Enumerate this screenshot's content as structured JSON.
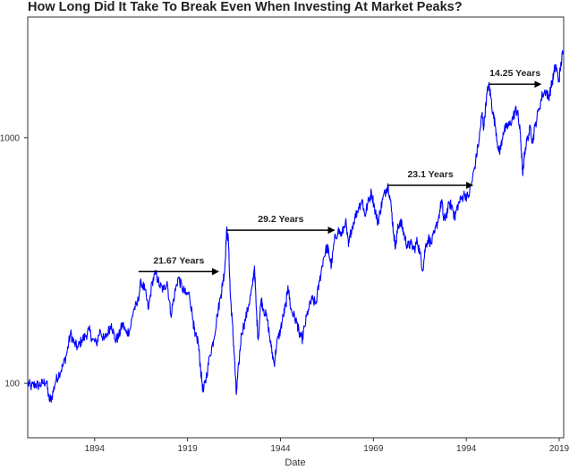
{
  "chart_data": {
    "type": "line",
    "title": "How Long Did It Take To Break Even When Investing At Market Peaks?",
    "xlabel": "Date",
    "ylabel": "",
    "x_scale": "time",
    "y_scale": "log",
    "xlim": [
      1876.0,
      2020.2
    ],
    "ylim": [
      60,
      3100
    ],
    "grid": false,
    "x_ticks": [
      {
        "value": 1894,
        "label": "1894"
      },
      {
        "value": 1919,
        "label": "1919"
      },
      {
        "value": 1944,
        "label": "1944"
      },
      {
        "value": 1969,
        "label": "1969"
      },
      {
        "value": 1994,
        "label": "1994"
      },
      {
        "value": 2019,
        "label": "2019"
      }
    ],
    "y_ticks": [
      {
        "value": 100,
        "label": "100"
      },
      {
        "value": 1000,
        "label": "1000"
      }
    ],
    "series": [
      {
        "color": "#0000ff",
        "points": [
          [
            1876.0,
            100
          ],
          [
            1877.0,
            97
          ],
          [
            1878.0,
            99
          ],
          [
            1879.0,
            98
          ],
          [
            1880.0,
            100
          ],
          [
            1881.0,
            102
          ],
          [
            1881.8,
            85
          ],
          [
            1882.5,
            88
          ],
          [
            1883.5,
            102
          ],
          [
            1884.5,
            110
          ],
          [
            1885.5,
            118
          ],
          [
            1886.5,
            132
          ],
          [
            1887.5,
            160
          ],
          [
            1888.5,
            145
          ],
          [
            1889.5,
            140
          ],
          [
            1890.5,
            150
          ],
          [
            1891.5,
            155
          ],
          [
            1892.5,
            165
          ],
          [
            1893.5,
            150
          ],
          [
            1894.5,
            145
          ],
          [
            1895.5,
            165
          ],
          [
            1896.5,
            150
          ],
          [
            1897.5,
            160
          ],
          [
            1898.5,
            175
          ],
          [
            1899.5,
            150
          ],
          [
            1900.5,
            155
          ],
          [
            1901.5,
            175
          ],
          [
            1902.5,
            160
          ],
          [
            1903.5,
            165
          ],
          [
            1904.5,
            200
          ],
          [
            1905.5,
            210
          ],
          [
            1906.5,
            260
          ],
          [
            1907.5,
            240
          ],
          [
            1908.5,
            200
          ],
          [
            1909.5,
            260
          ],
          [
            1910.5,
            280
          ],
          [
            1911.5,
            250
          ],
          [
            1912.5,
            240
          ],
          [
            1913.5,
            260
          ],
          [
            1914.5,
            190
          ],
          [
            1915.5,
            230
          ],
          [
            1916.5,
            270
          ],
          [
            1917.5,
            245
          ],
          [
            1918.5,
            230
          ],
          [
            1919.5,
            230
          ],
          [
            1920.5,
            180
          ],
          [
            1921.0,
            155
          ],
          [
            1921.8,
            150
          ],
          [
            1922.5,
            115
          ],
          [
            1923.2,
            92
          ],
          [
            1924.0,
            105
          ],
          [
            1925.0,
            130
          ],
          [
            1926.0,
            150
          ],
          [
            1927.0,
            190
          ],
          [
            1928.0,
            230
          ],
          [
            1928.5,
            260
          ],
          [
            1929.0,
            290
          ],
          [
            1929.5,
            420
          ],
          [
            1930.0,
            380
          ],
          [
            1930.5,
            230
          ],
          [
            1931.0,
            180
          ],
          [
            1931.6,
            130
          ],
          [
            1932.1,
            90
          ],
          [
            1932.8,
            120
          ],
          [
            1933.5,
            160
          ],
          [
            1934.5,
            180
          ],
          [
            1935.5,
            210
          ],
          [
            1936.5,
            250
          ],
          [
            1937.0,
            300
          ],
          [
            1937.5,
            200
          ],
          [
            1938.0,
            150
          ],
          [
            1938.8,
            220
          ],
          [
            1939.5,
            200
          ],
          [
            1940.5,
            180
          ],
          [
            1941.5,
            140
          ],
          [
            1942.3,
            120
          ],
          [
            1943.0,
            145
          ],
          [
            1944.0,
            165
          ],
          [
            1944.8,
            190
          ],
          [
            1945.5,
            210
          ],
          [
            1946.0,
            250
          ],
          [
            1946.8,
            200
          ],
          [
            1947.5,
            190
          ],
          [
            1948.5,
            175
          ],
          [
            1949.0,
            160
          ],
          [
            1949.8,
            150
          ],
          [
            1950.5,
            170
          ],
          [
            1951.5,
            200
          ],
          [
            1952.5,
            220
          ],
          [
            1953.5,
            210
          ],
          [
            1954.5,
            260
          ],
          [
            1955.5,
            320
          ],
          [
            1956.5,
            360
          ],
          [
            1957.0,
            340
          ],
          [
            1957.7,
            300
          ],
          [
            1958.5,
            380
          ],
          [
            1959.5,
            420
          ],
          [
            1960.5,
            400
          ],
          [
            1961.5,
            460
          ],
          [
            1962.3,
            360
          ],
          [
            1963.0,
            420
          ],
          [
            1964.0,
            470
          ],
          [
            1965.0,
            520
          ],
          [
            1966.0,
            560
          ],
          [
            1966.7,
            480
          ],
          [
            1967.5,
            540
          ],
          [
            1968.5,
            600
          ],
          [
            1969.3,
            520
          ],
          [
            1970.2,
            450
          ],
          [
            1970.8,
            500
          ],
          [
            1971.5,
            560
          ],
          [
            1972.5,
            620
          ],
          [
            1973.0,
            640
          ],
          [
            1973.8,
            520
          ],
          [
            1974.5,
            400
          ],
          [
            1975.0,
            360
          ],
          [
            1975.5,
            420
          ],
          [
            1976.2,
            460
          ],
          [
            1976.8,
            430
          ],
          [
            1977.5,
            390
          ],
          [
            1978.2,
            360
          ],
          [
            1979.0,
            370
          ],
          [
            1980.0,
            350
          ],
          [
            1980.8,
            380
          ],
          [
            1981.5,
            340
          ],
          [
            1982.3,
            290
          ],
          [
            1983.0,
            360
          ],
          [
            1983.8,
            390
          ],
          [
            1984.5,
            370
          ],
          [
            1985.5,
            410
          ],
          [
            1986.5,
            470
          ],
          [
            1987.4,
            560
          ],
          [
            1987.9,
            460
          ],
          [
            1988.5,
            480
          ],
          [
            1989.5,
            540
          ],
          [
            1990.3,
            520
          ],
          [
            1990.9,
            470
          ],
          [
            1991.5,
            520
          ],
          [
            1992.5,
            560
          ],
          [
            1993.5,
            590
          ],
          [
            1994.5,
            570
          ],
          [
            1995.5,
            660
          ],
          [
            1996.5,
            800
          ],
          [
            1997.5,
            1000
          ],
          [
            1998.2,
            1250
          ],
          [
            1998.7,
            1100
          ],
          [
            1999.3,
            1400
          ],
          [
            2000.0,
            1650
          ],
          [
            2000.5,
            1500
          ],
          [
            2001.2,
            1250
          ],
          [
            2001.9,
            1100
          ],
          [
            2002.7,
            880
          ],
          [
            2003.2,
            900
          ],
          [
            2003.9,
            1050
          ],
          [
            2004.8,
            1100
          ],
          [
            2005.5,
            1120
          ],
          [
            2006.5,
            1200
          ],
          [
            2007.3,
            1300
          ],
          [
            2007.8,
            1260
          ],
          [
            2008.5,
            1050
          ],
          [
            2009.0,
            800
          ],
          [
            2009.2,
            700
          ],
          [
            2009.7,
            880
          ],
          [
            2010.5,
            1000
          ],
          [
            2011.3,
            1100
          ],
          [
            2011.8,
            950
          ],
          [
            2012.5,
            1120
          ],
          [
            2013.5,
            1300
          ],
          [
            2014.5,
            1500
          ],
          [
            2015.5,
            1560
          ],
          [
            2016.1,
            1450
          ],
          [
            2016.8,
            1600
          ],
          [
            2017.5,
            1800
          ],
          [
            2018.0,
            1980
          ],
          [
            2018.9,
            1700
          ],
          [
            2019.5,
            2000
          ],
          [
            2020.0,
            2250
          ]
        ]
      }
    ],
    "annotations": [
      {
        "label": "21.67 Years",
        "x_start": 1905.8,
        "x_end": 1927.5,
        "y": 285
      },
      {
        "label": "29.2 Years",
        "x_start": 1929.5,
        "x_end": 1958.7,
        "y": 420
      },
      {
        "label": "23.1 Years",
        "x_start": 1972.8,
        "x_end": 1995.9,
        "y": 640
      },
      {
        "label": "14.25 Years",
        "x_start": 2000.0,
        "x_end": 2014.25,
        "y": 1650
      }
    ]
  }
}
